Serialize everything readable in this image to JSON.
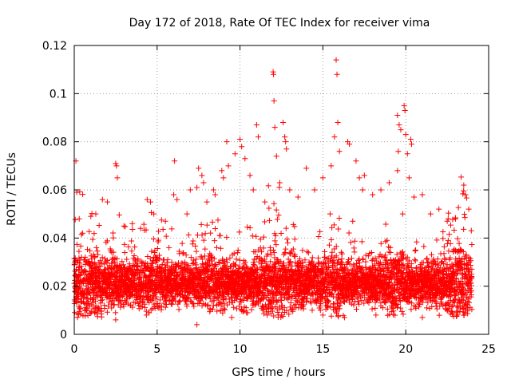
{
  "chart_data": {
    "type": "scatter",
    "title": "Day 172 of 2018, Rate Of TEC Index for receiver vima",
    "xlabel": "GPS time / hours",
    "ylabel": "ROTI / TECUs",
    "xlim": [
      0,
      25
    ],
    "ylim": [
      0,
      0.12
    ],
    "xticks": [
      0,
      5,
      10,
      15,
      20,
      25
    ],
    "xtick_labels": [
      "0",
      "5",
      "10",
      "15",
      "20",
      "25"
    ],
    "yticks": [
      0,
      0.02,
      0.04,
      0.06,
      0.08,
      0.1,
      0.12
    ],
    "ytick_labels": [
      "0",
      "0.02",
      "0.04",
      "0.06",
      "0.08",
      "0.1",
      "0.12"
    ],
    "grid": true,
    "marker": "+",
    "color": "#ff0000",
    "series": [
      {
        "name": "ROTI",
        "points": [
          [
            0.1,
            0.072
          ],
          [
            0.15,
            0.059
          ],
          [
            0.3,
            0.048
          ],
          [
            0.5,
            0.042
          ],
          [
            1.0,
            0.049
          ],
          [
            1.3,
            0.05
          ],
          [
            1.7,
            0.056
          ],
          [
            2.0,
            0.055
          ],
          [
            2.5,
            0.071
          ],
          [
            2.55,
            0.07
          ],
          [
            2.6,
            0.065
          ],
          [
            3.0,
            0.045
          ],
          [
            3.5,
            0.046
          ],
          [
            4.0,
            0.044
          ],
          [
            4.4,
            0.056
          ],
          [
            4.6,
            0.055
          ],
          [
            4.8,
            0.05
          ],
          [
            5.5,
            0.047
          ],
          [
            6.0,
            0.058
          ],
          [
            6.05,
            0.072
          ],
          [
            6.2,
            0.056
          ],
          [
            6.8,
            0.05
          ],
          [
            7.0,
            0.06
          ],
          [
            7.4,
            0.061
          ],
          [
            7.5,
            0.069
          ],
          [
            7.7,
            0.066
          ],
          [
            7.8,
            0.063
          ],
          [
            8.0,
            0.055
          ],
          [
            8.4,
            0.06
          ],
          [
            8.5,
            0.058
          ],
          [
            8.9,
            0.068
          ],
          [
            9.0,
            0.065
          ],
          [
            9.2,
            0.08
          ],
          [
            9.3,
            0.07
          ],
          [
            9.7,
            0.075
          ],
          [
            10.0,
            0.081
          ],
          [
            10.1,
            0.078
          ],
          [
            10.3,
            0.073
          ],
          [
            10.6,
            0.066
          ],
          [
            10.8,
            0.06
          ],
          [
            11.0,
            0.087
          ],
          [
            11.1,
            0.082
          ],
          [
            11.5,
            0.055
          ],
          [
            12.0,
            0.109
          ],
          [
            12.02,
            0.108
          ],
          [
            12.05,
            0.097
          ],
          [
            12.1,
            0.086
          ],
          [
            12.2,
            0.074
          ],
          [
            12.4,
            0.063
          ],
          [
            12.6,
            0.088
          ],
          [
            12.7,
            0.082
          ],
          [
            12.75,
            0.08
          ],
          [
            12.8,
            0.077
          ],
          [
            13.0,
            0.06
          ],
          [
            13.5,
            0.057
          ],
          [
            14.0,
            0.069
          ],
          [
            14.5,
            0.06
          ],
          [
            15.0,
            0.065
          ],
          [
            15.5,
            0.07
          ],
          [
            15.7,
            0.082
          ],
          [
            15.8,
            0.114
          ],
          [
            15.85,
            0.108
          ],
          [
            15.9,
            0.088
          ],
          [
            16.0,
            0.076
          ],
          [
            16.5,
            0.08
          ],
          [
            16.6,
            0.079
          ],
          [
            17.0,
            0.072
          ],
          [
            17.2,
            0.065
          ],
          [
            17.4,
            0.06
          ],
          [
            17.5,
            0.066
          ],
          [
            18.0,
            0.058
          ],
          [
            18.5,
            0.06
          ],
          [
            19.0,
            0.063
          ],
          [
            19.5,
            0.091
          ],
          [
            19.6,
            0.087
          ],
          [
            19.7,
            0.085
          ],
          [
            19.55,
            0.076
          ],
          [
            19.5,
            0.068
          ],
          [
            19.9,
            0.095
          ],
          [
            19.95,
            0.093
          ],
          [
            20.0,
            0.083
          ],
          [
            20.1,
            0.075
          ],
          [
            20.3,
            0.081
          ],
          [
            20.35,
            0.079
          ],
          [
            20.2,
            0.065
          ],
          [
            20.5,
            0.057
          ],
          [
            21.0,
            0.058
          ],
          [
            21.5,
            0.05
          ],
          [
            22.0,
            0.052
          ],
          [
            22.5,
            0.047
          ],
          [
            23.0,
            0.048
          ],
          [
            23.5,
            0.062
          ],
          [
            23.6,
            0.058
          ],
          [
            23.8,
            0.052
          ],
          [
            9.5,
            0.007
          ],
          [
            7.4,
            0.004
          ],
          [
            12.5,
            0.008
          ],
          [
            16.3,
            0.007
          ],
          [
            18.2,
            0.008
          ],
          [
            21.0,
            0.007
          ],
          [
            2.5,
            0.006
          ],
          [
            4.5,
            0.009
          ],
          [
            15.0,
            0.008
          ],
          [
            23.5,
            0.008
          ]
        ]
      }
    ],
    "band": {
      "description": "dense cloud of ROTI samples over the full day",
      "x_start": 0,
      "x_end": 24,
      "step_hours": 0.015,
      "typical_min": 0.01,
      "typical_center": 0.021,
      "typical_max": 0.045
    }
  }
}
